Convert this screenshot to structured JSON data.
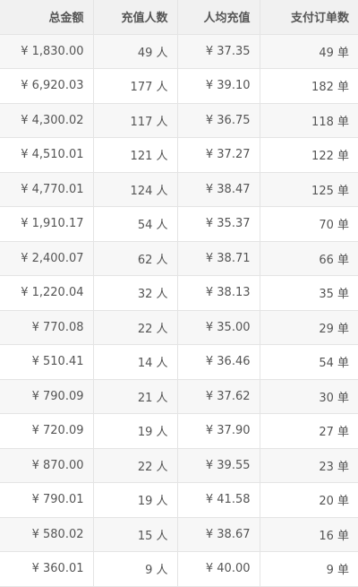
{
  "table": {
    "headers": [
      "总金额",
      "充值人数",
      "人均充值",
      "支付订单数"
    ],
    "rows": [
      [
        "¥ 1,830.00",
        "49 人",
        "¥ 37.35",
        "49 单"
      ],
      [
        "¥ 6,920.03",
        "177 人",
        "¥ 39.10",
        "182 单"
      ],
      [
        "¥ 4,300.02",
        "117 人",
        "¥ 36.75",
        "118 单"
      ],
      [
        "¥ 4,510.01",
        "121 人",
        "¥ 37.27",
        "122 单"
      ],
      [
        "¥ 4,770.01",
        "124 人",
        "¥ 38.47",
        "125 单"
      ],
      [
        "¥ 1,910.17",
        "54 人",
        "¥ 35.37",
        "70 单"
      ],
      [
        "¥ 2,400.07",
        "62 人",
        "¥ 38.71",
        "66 单"
      ],
      [
        "¥ 1,220.04",
        "32 人",
        "¥ 38.13",
        "35 单"
      ],
      [
        "¥ 770.08",
        "22 人",
        "¥ 35.00",
        "29 单"
      ],
      [
        "¥ 510.41",
        "14 人",
        "¥ 36.46",
        "54 单"
      ],
      [
        "¥ 790.09",
        "21 人",
        "¥ 37.62",
        "30 单"
      ],
      [
        "¥ 720.09",
        "19 人",
        "¥ 37.90",
        "27 单"
      ],
      [
        "¥ 870.00",
        "22 人",
        "¥ 39.55",
        "23 单"
      ],
      [
        "¥ 790.01",
        "19 人",
        "¥ 41.58",
        "20 单"
      ],
      [
        "¥ 580.02",
        "15 人",
        "¥ 38.67",
        "16 单"
      ],
      [
        "¥ 360.01",
        "9 人",
        "¥ 40.00",
        "9 单"
      ]
    ]
  }
}
